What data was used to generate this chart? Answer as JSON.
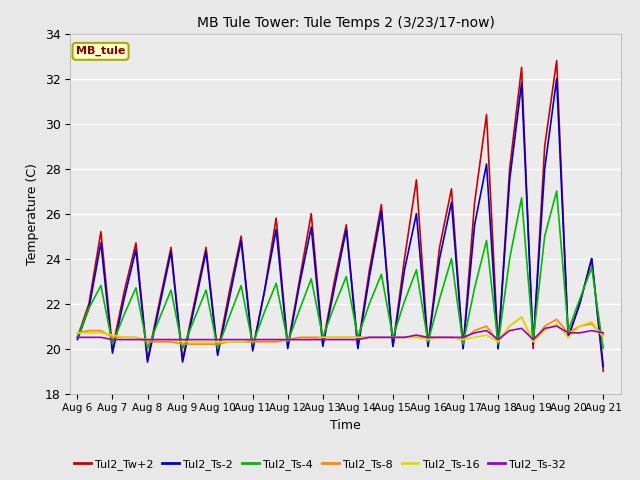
{
  "title": "MB Tule Tower: Tule Temps 2 (3/23/17-now)",
  "xlabel": "Time",
  "ylabel": "Temperature (C)",
  "ylim": [
    18,
    34
  ],
  "yticks": [
    18,
    20,
    22,
    24,
    26,
    28,
    30,
    32,
    34
  ],
  "x_labels": [
    "Aug 6",
    "Aug 7",
    "Aug 8",
    "Aug 9",
    "Aug 10",
    "Aug 11",
    "Aug 12",
    "Aug 13",
    "Aug 14",
    "Aug 15",
    "Aug 16",
    "Aug 17",
    "Aug 18",
    "Aug 19",
    "Aug 20",
    "Aug 21"
  ],
  "background_color": "#e8e8e8",
  "plot_bg_color": "#ebebeb",
  "annotation_text": "MB_tule",
  "annotation_bg": "#ffffcc",
  "annotation_border": "#aaaa00",
  "series": {
    "Tul2_Tw+2": {
      "color": "#cc0000",
      "lw": 1.2,
      "data_x": [
        0,
        0.33,
        0.67,
        1,
        1.33,
        1.67,
        2,
        2.33,
        2.67,
        3,
        3.33,
        3.67,
        4,
        4.33,
        4.67,
        5,
        5.33,
        5.67,
        6,
        6.33,
        6.67,
        7,
        7.33,
        7.67,
        8,
        8.33,
        8.67,
        9,
        9.33,
        9.67,
        10,
        10.33,
        10.67,
        11,
        11.33,
        11.67,
        12,
        12.33,
        12.67,
        13,
        13.33,
        13.67,
        14,
        14.33,
        14.67,
        15
      ],
      "data_y": [
        20.5,
        22.0,
        25.2,
        20.0,
        22.5,
        24.7,
        19.5,
        22.0,
        24.5,
        19.5,
        22.0,
        24.5,
        19.8,
        22.5,
        25.0,
        20.0,
        22.5,
        25.8,
        20.1,
        23.0,
        26.0,
        20.2,
        23.0,
        25.5,
        20.1,
        23.5,
        26.4,
        20.1,
        24.0,
        27.5,
        20.1,
        24.5,
        27.1,
        20.0,
        26.5,
        30.4,
        20.0,
        28.0,
        32.5,
        20.0,
        29.0,
        32.8,
        20.5,
        22.0,
        24.0,
        19.0
      ]
    },
    "Tul2_Ts-2": {
      "color": "#0000cc",
      "lw": 1.2,
      "data_x": [
        0,
        0.33,
        0.67,
        1,
        1.33,
        1.67,
        2,
        2.33,
        2.67,
        3,
        3.33,
        3.67,
        4,
        4.33,
        4.67,
        5,
        5.33,
        5.67,
        6,
        6.33,
        6.67,
        7,
        7.33,
        7.67,
        8,
        8.33,
        8.67,
        9,
        9.33,
        9.67,
        10,
        10.33,
        10.67,
        11,
        11.33,
        11.67,
        12,
        12.33,
        12.67,
        13,
        13.33,
        13.67,
        14,
        14.33,
        14.67,
        15
      ],
      "data_y": [
        20.4,
        21.8,
        24.7,
        19.8,
        22.2,
        24.4,
        19.4,
        21.8,
        24.3,
        19.4,
        21.8,
        24.3,
        19.7,
        22.2,
        24.8,
        19.9,
        22.5,
        25.3,
        20.0,
        22.8,
        25.4,
        20.1,
        22.7,
        25.3,
        20.0,
        23.2,
        26.1,
        20.1,
        23.5,
        26.0,
        20.1,
        24.0,
        26.5,
        20.0,
        25.5,
        28.2,
        20.0,
        27.5,
        31.8,
        20.2,
        28.0,
        32.0,
        20.5,
        22.0,
        24.0,
        19.2
      ]
    },
    "Tul2_Ts-4": {
      "color": "#00bb00",
      "lw": 1.2,
      "data_x": [
        0,
        0.33,
        0.67,
        1,
        1.33,
        1.67,
        2,
        2.33,
        2.67,
        3,
        3.33,
        3.67,
        4,
        4.33,
        4.67,
        5,
        5.33,
        5.67,
        6,
        6.33,
        6.67,
        7,
        7.33,
        7.67,
        8,
        8.33,
        8.67,
        9,
        9.33,
        9.67,
        10,
        10.33,
        10.67,
        11,
        11.33,
        11.67,
        12,
        12.33,
        12.67,
        13,
        13.33,
        13.67,
        14,
        14.33,
        14.67,
        15
      ],
      "data_y": [
        20.5,
        21.8,
        22.8,
        20.2,
        21.5,
        22.7,
        20.0,
        21.3,
        22.6,
        20.0,
        21.3,
        22.6,
        20.0,
        21.4,
        22.8,
        20.2,
        21.6,
        22.9,
        20.3,
        21.7,
        23.1,
        20.5,
        21.9,
        23.2,
        20.5,
        22.0,
        23.3,
        20.5,
        22.1,
        23.5,
        20.3,
        22.2,
        24.0,
        20.2,
        22.7,
        24.8,
        20.2,
        24.0,
        26.7,
        20.4,
        25.0,
        27.0,
        20.8,
        22.2,
        23.6,
        20.0
      ]
    },
    "Tul2_Ts-8": {
      "color": "#ff8800",
      "lw": 1.2,
      "data_x": [
        0,
        0.33,
        0.67,
        1,
        1.33,
        1.67,
        2,
        2.33,
        2.67,
        3,
        3.33,
        3.67,
        4,
        4.33,
        4.67,
        5,
        5.33,
        5.67,
        6,
        6.33,
        6.67,
        7,
        7.33,
        7.67,
        8,
        8.33,
        8.67,
        9,
        9.33,
        9.67,
        10,
        10.33,
        10.67,
        11,
        11.33,
        11.67,
        12,
        12.33,
        12.67,
        13,
        13.33,
        13.67,
        14,
        14.33,
        14.67,
        15
      ],
      "data_y": [
        20.7,
        20.8,
        20.8,
        20.5,
        20.5,
        20.5,
        20.3,
        20.3,
        20.3,
        20.2,
        20.2,
        20.2,
        20.2,
        20.3,
        20.3,
        20.3,
        20.3,
        20.3,
        20.4,
        20.5,
        20.5,
        20.5,
        20.5,
        20.5,
        20.5,
        20.5,
        20.5,
        20.5,
        20.5,
        20.5,
        20.5,
        20.5,
        20.5,
        20.4,
        20.8,
        21.0,
        20.3,
        21.0,
        21.4,
        20.3,
        21.0,
        21.3,
        20.7,
        21.0,
        21.1,
        20.6
      ]
    },
    "Tul2_Ts-16": {
      "color": "#dddd00",
      "lw": 1.2,
      "data_x": [
        0,
        0.33,
        0.67,
        1,
        1.33,
        1.67,
        2,
        2.33,
        2.67,
        3,
        3.33,
        3.67,
        4,
        4.33,
        4.67,
        5,
        5.33,
        5.67,
        6,
        6.33,
        6.67,
        7,
        7.33,
        7.67,
        8,
        8.33,
        8.67,
        9,
        9.33,
        9.67,
        10,
        10.33,
        10.67,
        11,
        11.33,
        11.67,
        12,
        12.33,
        12.67,
        13,
        13.33,
        13.67,
        14,
        14.33,
        14.67,
        15
      ],
      "data_y": [
        20.7,
        20.7,
        20.7,
        20.6,
        20.5,
        20.5,
        20.4,
        20.4,
        20.4,
        20.3,
        20.3,
        20.3,
        20.3,
        20.3,
        20.3,
        20.4,
        20.4,
        20.4,
        20.4,
        20.4,
        20.4,
        20.5,
        20.5,
        20.5,
        20.5,
        20.5,
        20.5,
        20.5,
        20.5,
        20.5,
        20.4,
        20.5,
        20.5,
        20.4,
        20.5,
        20.6,
        20.3,
        21.0,
        21.4,
        20.3,
        20.8,
        21.1,
        20.5,
        21.0,
        21.2,
        20.5
      ]
    },
    "Tul2_Ts-32": {
      "color": "#9900cc",
      "lw": 1.2,
      "data_x": [
        0,
        0.33,
        0.67,
        1,
        1.33,
        1.67,
        2,
        2.33,
        2.67,
        3,
        3.33,
        3.67,
        4,
        4.33,
        4.67,
        5,
        5.33,
        5.67,
        6,
        6.33,
        6.67,
        7,
        7.33,
        7.67,
        8,
        8.33,
        8.67,
        9,
        9.33,
        9.67,
        10,
        10.33,
        10.67,
        11,
        11.33,
        11.67,
        12,
        12.33,
        12.67,
        13,
        13.33,
        13.67,
        14,
        14.33,
        14.67,
        15
      ],
      "data_y": [
        20.5,
        20.5,
        20.5,
        20.4,
        20.4,
        20.4,
        20.4,
        20.4,
        20.4,
        20.4,
        20.4,
        20.4,
        20.4,
        20.4,
        20.4,
        20.4,
        20.4,
        20.4,
        20.4,
        20.4,
        20.4,
        20.4,
        20.4,
        20.4,
        20.4,
        20.5,
        20.5,
        20.5,
        20.5,
        20.6,
        20.5,
        20.5,
        20.5,
        20.5,
        20.7,
        20.8,
        20.4,
        20.8,
        20.9,
        20.4,
        20.9,
        21.0,
        20.7,
        20.7,
        20.8,
        20.7
      ]
    }
  },
  "legend_items": [
    {
      "label": "Tul2_Tw+2",
      "color": "#cc0000"
    },
    {
      "label": "Tul2_Ts-2",
      "color": "#0000cc"
    },
    {
      "label": "Tul2_Ts-4",
      "color": "#00bb00"
    },
    {
      "label": "Tul2_Ts-8",
      "color": "#ff8800"
    },
    {
      "label": "Tul2_Ts-16",
      "color": "#dddd00"
    },
    {
      "label": "Tul2_Ts-32",
      "color": "#9900cc"
    }
  ]
}
